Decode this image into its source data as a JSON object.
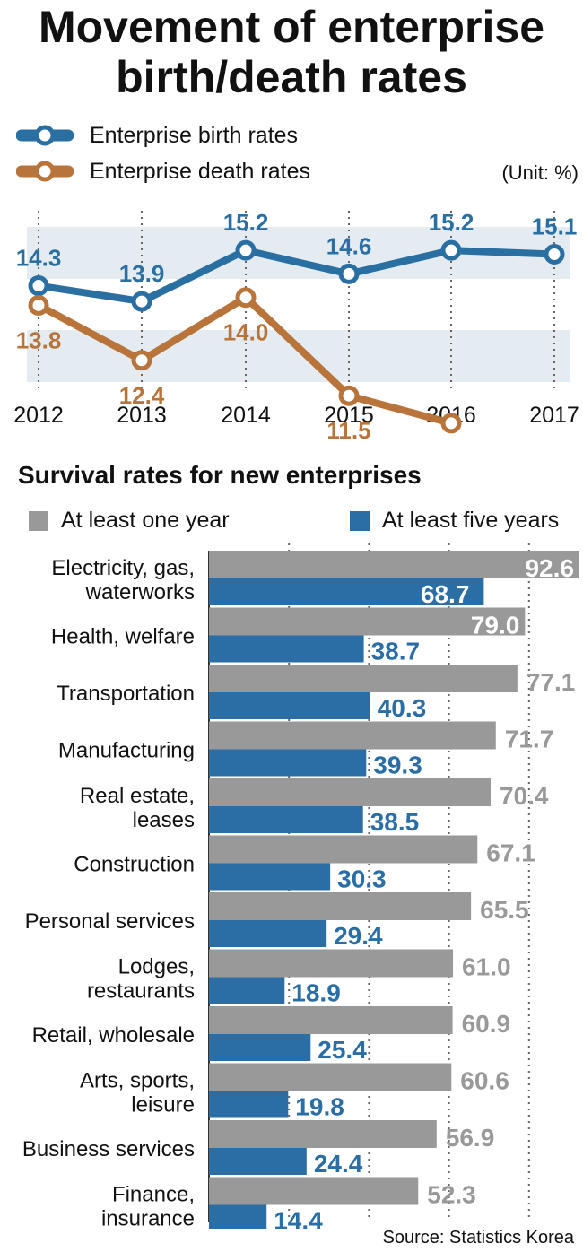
{
  "title_line1": "Movement of enterprise",
  "title_line2": "birth/death rates",
  "unit": "(Unit: %)",
  "colors": {
    "birth": "#2a6fa2",
    "death": "#b8743b",
    "band": "#e4ebf1",
    "gray": "#999999",
    "blue": "#2b6ea6"
  },
  "legend": {
    "birth": "Enterprise birth rates",
    "death": "Enterprise death rates"
  },
  "chart_data": [
    {
      "type": "line",
      "x": [
        "2012",
        "2013",
        "2014",
        "2015",
        "2016",
        "2017"
      ],
      "series": [
        {
          "name": "Enterprise birth rates",
          "values": [
            14.3,
            13.9,
            15.2,
            14.6,
            15.2,
            15.1
          ]
        },
        {
          "name": "Enterprise death rates",
          "values": [
            13.8,
            12.4,
            14.0,
            11.5,
            10.8,
            null
          ]
        }
      ]
    },
    {
      "type": "bar",
      "title": "Survival rates for new enterprises",
      "categories": [
        "Electricity, gas,\nwaterworks",
        "Health, welfare",
        "Transportation",
        "Manufacturing",
        "Real estate,\nleases",
        "Construction",
        "Personal services",
        "Lodges,\nrestaurants",
        "Retail, wholesale",
        "Arts, sports,\nleisure",
        "Business services",
        "Finance,\ninsurance"
      ],
      "series": [
        {
          "name": "At least one year",
          "values": [
            92.6,
            79.0,
            77.1,
            71.7,
            70.4,
            67.1,
            65.5,
            61.0,
            60.9,
            60.6,
            56.9,
            52.3
          ]
        },
        {
          "name": "At least five years",
          "values": [
            68.7,
            38.7,
            40.3,
            39.3,
            38.5,
            30.3,
            29.4,
            18.9,
            25.4,
            19.8,
            24.4,
            14.4
          ]
        }
      ]
    }
  ],
  "source": "Source: Statistics Korea"
}
